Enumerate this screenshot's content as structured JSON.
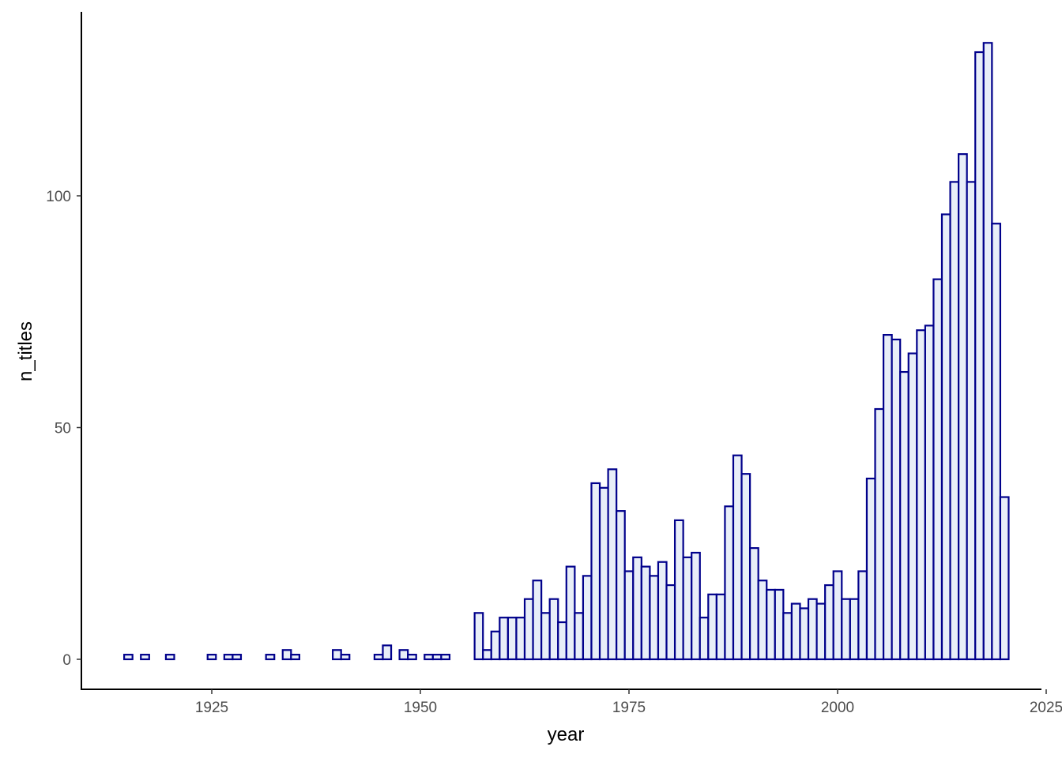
{
  "chart_data": {
    "type": "bar",
    "title": "",
    "xlabel": "year",
    "ylabel": "n_titles",
    "xlim": [
      1910,
      2025
    ],
    "ylim": [
      -6,
      134
    ],
    "x_ticks": [
      1925,
      1950,
      1975,
      2000,
      2025
    ],
    "y_ticks": [
      0,
      50,
      100
    ],
    "grid": false,
    "legend": null,
    "bar_fill": "#e8eef8",
    "bar_stroke": "#00008b",
    "x": [
      1915,
      1917,
      1920,
      1925,
      1927,
      1928,
      1932,
      1934,
      1935,
      1940,
      1941,
      1945,
      1946,
      1948,
      1949,
      1951,
      1952,
      1953,
      1957,
      1958,
      1959,
      1960,
      1961,
      1962,
      1963,
      1964,
      1965,
      1966,
      1967,
      1968,
      1969,
      1970,
      1971,
      1972,
      1973,
      1974,
      1975,
      1976,
      1977,
      1978,
      1979,
      1980,
      1981,
      1982,
      1983,
      1984,
      1985,
      1986,
      1987,
      1988,
      1989,
      1990,
      1991,
      1992,
      1993,
      1994,
      1995,
      1996,
      1997,
      1998,
      1999,
      2000,
      2001,
      2002,
      2003,
      2004,
      2005,
      2006,
      2007,
      2008,
      2009,
      2010,
      2011,
      2012,
      2013,
      2014,
      2015,
      2016,
      2017,
      2018,
      2019,
      2020
    ],
    "values": [
      1,
      1,
      1,
      1,
      1,
      1,
      1,
      2,
      1,
      2,
      1,
      1,
      3,
      2,
      1,
      1,
      1,
      1,
      10,
      2,
      6,
      9,
      9,
      9,
      13,
      17,
      10,
      13,
      8,
      20,
      10,
      18,
      38,
      37,
      41,
      32,
      19,
      22,
      20,
      18,
      21,
      16,
      30,
      22,
      23,
      9,
      14,
      14,
      33,
      44,
      40,
      24,
      17,
      15,
      15,
      10,
      12,
      11,
      13,
      12,
      16,
      19,
      13,
      13,
      19,
      39,
      54,
      70,
      69,
      62,
      66,
      71,
      72,
      82,
      96,
      103,
      109,
      103,
      131,
      133,
      94,
      35
    ]
  },
  "axes": {
    "x_title": "year",
    "y_title": "n_titles",
    "x_tick_labels": [
      "1925",
      "1950",
      "1975",
      "2000",
      "2025"
    ],
    "y_tick_labels": [
      "0",
      "50",
      "100"
    ]
  }
}
